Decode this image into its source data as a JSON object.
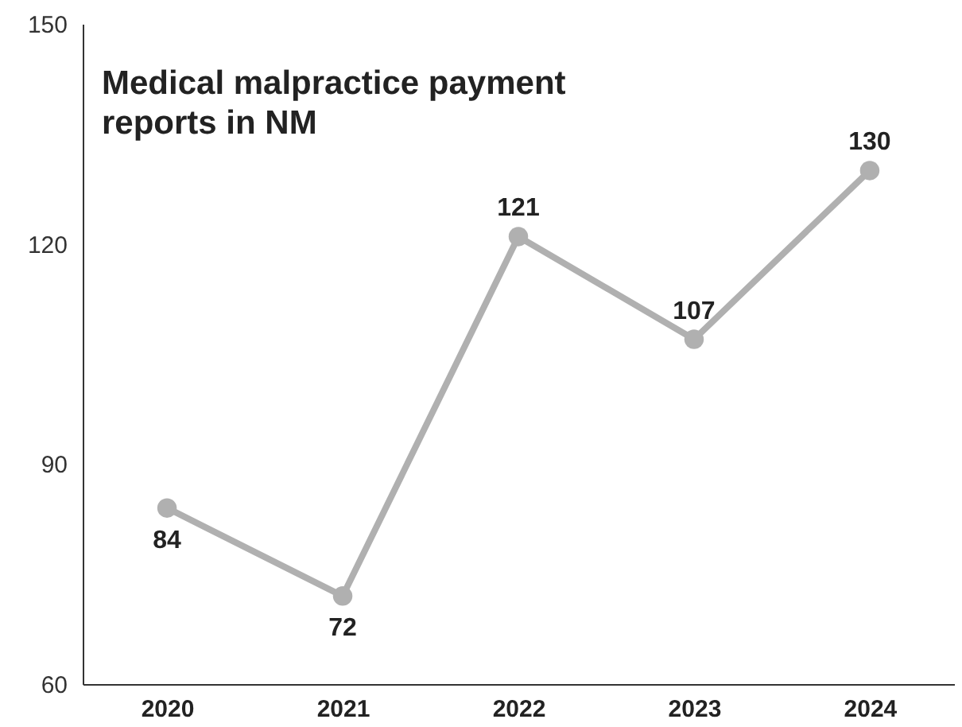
{
  "chart_data": {
    "type": "line",
    "title": "Medical malpractice payment reports in NM",
    "categories": [
      "2020",
      "2021",
      "2022",
      "2023",
      "2024"
    ],
    "series": [
      {
        "color": "#b0b0b0",
        "values": [
          84,
          72,
          121,
          107,
          130
        ]
      }
    ],
    "ylim": [
      60,
      150
    ],
    "yticks": [
      60,
      90,
      120,
      150
    ],
    "grid": false,
    "marker": "circle",
    "line_style": "solid",
    "data_labels": true
  }
}
